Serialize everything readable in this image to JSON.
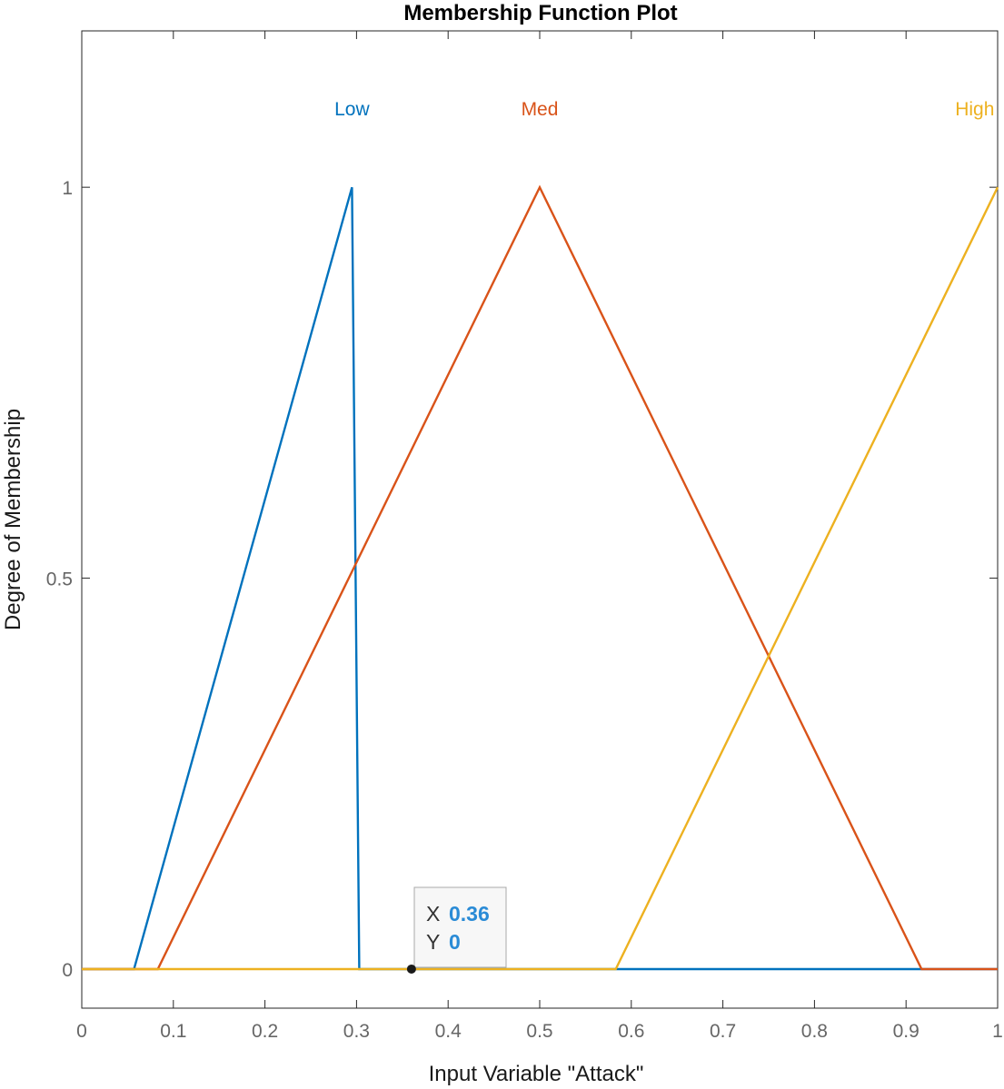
{
  "chart_data": {
    "type": "line",
    "title": "Membership Function Plot",
    "xlabel": "Input Variable \"Attack\"",
    "ylabel": "Degree of Membership",
    "xlim": [
      0,
      1
    ],
    "ylim": [
      -0.05,
      1.2
    ],
    "x_ticks": [
      0,
      0.1,
      0.2,
      0.3,
      0.4,
      0.5,
      0.6,
      0.7,
      0.8,
      0.9,
      1
    ],
    "x_tick_labels": [
      "0",
      "0.1",
      "0.2",
      "0.3",
      "0.4",
      "0.5",
      "0.6",
      "0.7",
      "0.8",
      "0.9",
      "1"
    ],
    "y_ticks": [
      0,
      0.5,
      1
    ],
    "y_tick_labels": [
      "0",
      "0.5",
      "1"
    ],
    "grid": false,
    "series": [
      {
        "name": "Low",
        "color": "#0072BD",
        "x": [
          0,
          0.057,
          0.295,
          0.303,
          1
        ],
        "y": [
          0,
          0,
          1,
          0,
          0
        ],
        "label_x": 0.295
      },
      {
        "name": "Med",
        "color": "#D95319",
        "x": [
          0,
          0.083,
          0.5,
          0.917,
          1
        ],
        "y": [
          0,
          0,
          1,
          0,
          0
        ],
        "label_x": 0.5
      },
      {
        "name": "High",
        "color": "#EDB120",
        "x": [
          0,
          0.583,
          1
        ],
        "y": [
          0,
          0,
          1
        ],
        "label_x": 0.975
      }
    ],
    "datatip": {
      "x": 0.36,
      "y": 0,
      "x_label": "X",
      "y_label": "Y",
      "x_value": "0.36",
      "y_value": "0",
      "value_color": "#2a8bd6"
    }
  }
}
